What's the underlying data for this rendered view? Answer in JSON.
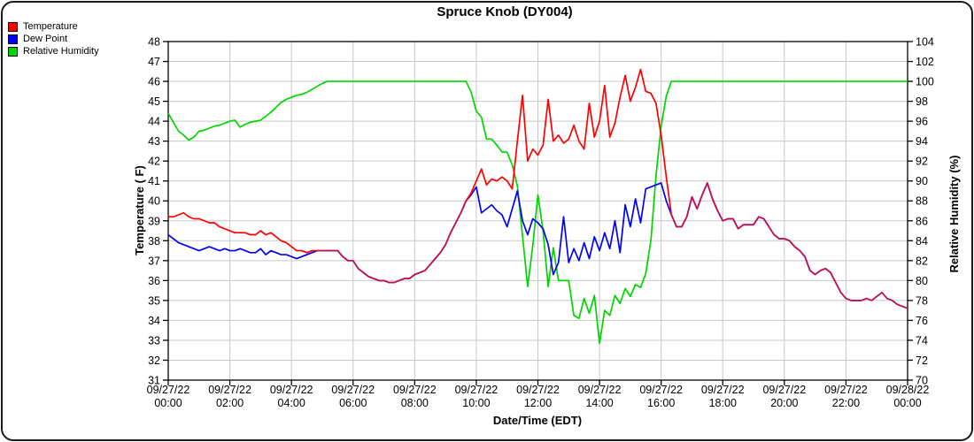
{
  "title": "Spruce Knob (DY004)",
  "legend": {
    "items": [
      {
        "label": "Temperature",
        "color": "#ff0000"
      },
      {
        "label": "Dew Point",
        "color": "#0000ff"
      },
      {
        "label": "Relative Humidity",
        "color": "#00d500"
      }
    ]
  },
  "axes": {
    "left_label": "Temperature ( F)",
    "right_label": "Relative Humidity (%)",
    "x_label": "Date/Time (EDT)",
    "left_ticks": [
      48,
      47,
      46,
      45,
      44,
      43,
      42,
      41,
      40,
      39,
      38,
      37,
      36,
      35,
      34,
      33,
      32,
      31
    ],
    "right_ticks": [
      104,
      102,
      100,
      98,
      96,
      94,
      92,
      90,
      88,
      86,
      84,
      82,
      80,
      78,
      76,
      74,
      72,
      70
    ],
    "x_ticks": [
      {
        "date": "09/27/22",
        "time": "00:00"
      },
      {
        "date": "09/27/22",
        "time": "02:00"
      },
      {
        "date": "09/27/22",
        "time": "04:00"
      },
      {
        "date": "09/27/22",
        "time": "06:00"
      },
      {
        "date": "09/27/22",
        "time": "08:00"
      },
      {
        "date": "09/27/22",
        "time": "10:00"
      },
      {
        "date": "09/27/22",
        "time": "12:00"
      },
      {
        "date": "09/27/22",
        "time": "14:00"
      },
      {
        "date": "09/27/22",
        "time": "16:00"
      },
      {
        "date": "09/27/22",
        "time": "18:00"
      },
      {
        "date": "09/27/22",
        "time": "20:00"
      },
      {
        "date": "09/27/22",
        "time": "22:00"
      },
      {
        "date": "09/28/22",
        "time": "00:00"
      }
    ]
  },
  "chart_data": {
    "type": "line",
    "title": "Spruce Knob (DY004)",
    "xlabel": "Date/Time (EDT)",
    "x_start": "09/27/22 00:00",
    "x_end": "09/28/22 00:00",
    "x_step_minutes": 10,
    "grid": true,
    "legend_position": "top-left",
    "gridline_color": "#c8c8c8",
    "y_left": {
      "label": "Temperature ( F)",
      "min": 31,
      "max": 48,
      "tick_step": 1
    },
    "y_right": {
      "label": "Relative Humidity (%)",
      "min": 70,
      "max": 104,
      "tick_step": 2
    },
    "overlap_color": "#c81048",
    "series": [
      {
        "name": "Temperature",
        "axis": "left",
        "color": "#ff0000",
        "values": [
          39.2,
          39.2,
          39.3,
          39.4,
          39.2,
          39.1,
          39.1,
          39.0,
          38.9,
          38.9,
          38.7,
          38.6,
          38.5,
          38.4,
          38.4,
          38.4,
          38.3,
          38.3,
          38.5,
          38.3,
          38.4,
          38.2,
          38.0,
          37.9,
          37.7,
          37.5,
          37.5,
          37.4,
          37.5,
          37.5,
          37.5,
          37.5,
          37.5,
          37.5,
          37.2,
          37.0,
          37.0,
          36.6,
          36.4,
          36.2,
          36.1,
          36.0,
          36.0,
          35.9,
          35.9,
          36.0,
          36.1,
          36.1,
          36.3,
          36.4,
          36.5,
          36.8,
          37.1,
          37.4,
          37.8,
          38.4,
          38.9,
          39.4,
          40.0,
          40.4,
          41.0,
          41.6,
          40.8,
          41.1,
          41.0,
          41.2,
          41.0,
          40.6,
          43.0,
          45.3,
          42.0,
          42.6,
          42.3,
          42.8,
          45.1,
          43.0,
          43.3,
          42.9,
          43.1,
          43.8,
          43.0,
          42.6,
          44.9,
          43.2,
          44.0,
          45.8,
          43.2,
          43.9,
          45.2,
          46.3,
          45.0,
          45.7,
          46.6,
          45.5,
          45.4,
          44.9,
          43.3,
          41.2,
          39.3,
          38.7,
          38.7,
          39.2,
          40.2,
          39.6,
          40.3,
          40.9,
          40.1,
          39.5,
          39.0,
          39.1,
          39.1,
          38.6,
          38.8,
          38.8,
          38.8,
          39.2,
          39.1,
          38.7,
          38.3,
          38.1,
          38.1,
          38.0,
          37.7,
          37.5,
          37.2,
          36.5,
          36.3,
          36.5,
          36.6,
          36.4,
          35.9,
          35.4,
          35.1,
          35.0,
          35.0,
          35.0,
          35.1,
          35.0,
          35.2,
          35.4,
          35.1,
          35.0,
          34.8,
          34.7,
          34.6
        ]
      },
      {
        "name": "Dew Point",
        "axis": "left",
        "color": "#0000ff",
        "values": [
          38.3,
          38.1,
          37.9,
          37.8,
          37.7,
          37.6,
          37.5,
          37.6,
          37.7,
          37.6,
          37.5,
          37.6,
          37.5,
          37.5,
          37.6,
          37.5,
          37.4,
          37.4,
          37.6,
          37.3,
          37.5,
          37.4,
          37.3,
          37.3,
          37.2,
          37.1,
          37.2,
          37.3,
          37.4,
          37.5,
          37.5,
          37.5,
          37.5,
          37.5,
          37.2,
          37.0,
          37.0,
          36.6,
          36.4,
          36.2,
          36.1,
          36.0,
          36.0,
          35.9,
          35.9,
          36.0,
          36.1,
          36.1,
          36.3,
          36.4,
          36.5,
          36.8,
          37.1,
          37.4,
          37.8,
          38.4,
          38.9,
          39.4,
          40.0,
          40.3,
          40.7,
          39.4,
          39.6,
          39.8,
          39.5,
          39.3,
          38.7,
          39.6,
          40.5,
          39.0,
          38.3,
          39.1,
          38.9,
          38.6,
          37.8,
          36.3,
          36.9,
          39.2,
          36.9,
          37.6,
          37.0,
          37.9,
          37.1,
          38.2,
          37.5,
          38.4,
          37.6,
          39.0,
          37.4,
          39.8,
          38.7,
          40.1,
          38.9,
          40.6,
          40.7,
          40.8,
          40.9,
          40.0,
          39.3,
          38.7,
          38.7,
          39.2,
          40.2,
          39.6,
          40.3,
          40.9,
          40.1,
          39.5,
          39.0,
          39.1,
          39.1,
          38.6,
          38.8,
          38.8,
          38.8,
          39.2,
          39.1,
          38.7,
          38.3,
          38.1,
          38.1,
          38.0,
          37.7,
          37.5,
          37.2,
          36.5,
          36.3,
          36.5,
          36.6,
          36.4,
          35.9,
          35.4,
          35.1,
          35.0,
          35.0,
          35.0,
          35.1,
          35.0,
          35.2,
          35.4,
          35.1,
          35.0,
          34.8,
          34.7,
          34.6
        ]
      },
      {
        "name": "Relative Humidity",
        "axis": "right",
        "color": "#00d500",
        "values": [
          96.8,
          95.9,
          95.0,
          94.6,
          94.1,
          94.4,
          95.0,
          95.1,
          95.3,
          95.5,
          95.6,
          95.8,
          96.0,
          96.1,
          95.4,
          95.7,
          95.9,
          96.0,
          96.1,
          96.5,
          96.9,
          97.4,
          97.9,
          98.2,
          98.4,
          98.6,
          98.7,
          98.9,
          99.2,
          99.5,
          99.8,
          100,
          100,
          100,
          100,
          100,
          100,
          100,
          100,
          100,
          100,
          100,
          100,
          100,
          100,
          100,
          100,
          100,
          100,
          100,
          100,
          100,
          100,
          100,
          100,
          100,
          100,
          100,
          100,
          98.9,
          97.0,
          96.4,
          94.2,
          94.2,
          93.6,
          92.9,
          92.9,
          91.6,
          89.5,
          84.5,
          79.4,
          83.5,
          88.6,
          85.0,
          79.4,
          83.3,
          80.0,
          80.0,
          80.0,
          76.5,
          76.2,
          78.2,
          76.7,
          78.5,
          73.7,
          77.0,
          76.5,
          78.5,
          77.7,
          79.2,
          78.4,
          79.6,
          79.3,
          80.7,
          84.0,
          90.5,
          95.5,
          98.5,
          100,
          100,
          100,
          100,
          100,
          100,
          100,
          100,
          100,
          100,
          100,
          100,
          100,
          100,
          100,
          100,
          100,
          100,
          100,
          100,
          100,
          100,
          100,
          100,
          100,
          100,
          100,
          100,
          100,
          100,
          100,
          100,
          100,
          100,
          100,
          100,
          100,
          100,
          100,
          100,
          100,
          100,
          100,
          100,
          100,
          100,
          100
        ]
      }
    ]
  }
}
